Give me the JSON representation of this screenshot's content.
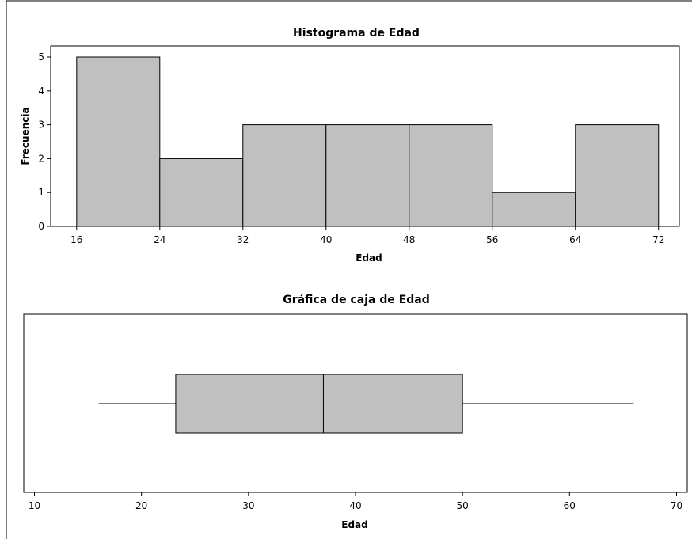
{
  "colors": {
    "bar_fill": "#c0c0c0",
    "stroke": "#000000",
    "background": "#ffffff"
  },
  "chart_data": [
    {
      "type": "bar",
      "title": "Histograma de Edad",
      "xlabel": "Edad",
      "ylabel": "Frecuencia",
      "bins": [
        {
          "from": 16,
          "to": 24,
          "count": 5
        },
        {
          "from": 24,
          "to": 32,
          "count": 2
        },
        {
          "from": 32,
          "to": 40,
          "count": 3
        },
        {
          "from": 40,
          "to": 48,
          "count": 3
        },
        {
          "from": 48,
          "to": 56,
          "count": 3
        },
        {
          "from": 56,
          "to": 64,
          "count": 1
        },
        {
          "from": 64,
          "to": 72,
          "count": 3
        }
      ],
      "xticks": [
        "16",
        "24",
        "32",
        "40",
        "48",
        "56",
        "64",
        "72"
      ],
      "yticks": [
        "0",
        "1",
        "2",
        "3",
        "4",
        "5"
      ],
      "xlim": [
        13.5,
        74
      ],
      "ylim": [
        0,
        5
      ],
      "grid": false
    },
    {
      "type": "box",
      "title": "Gráfica de caja de Edad",
      "xlabel": "Edad",
      "min": 16,
      "q1": 23.2,
      "median": 37,
      "q3": 50,
      "max": 66,
      "xticks": [
        "10",
        "20",
        "30",
        "40",
        "50",
        "60",
        "70"
      ],
      "xlim": [
        9,
        71
      ],
      "grid": false
    }
  ]
}
